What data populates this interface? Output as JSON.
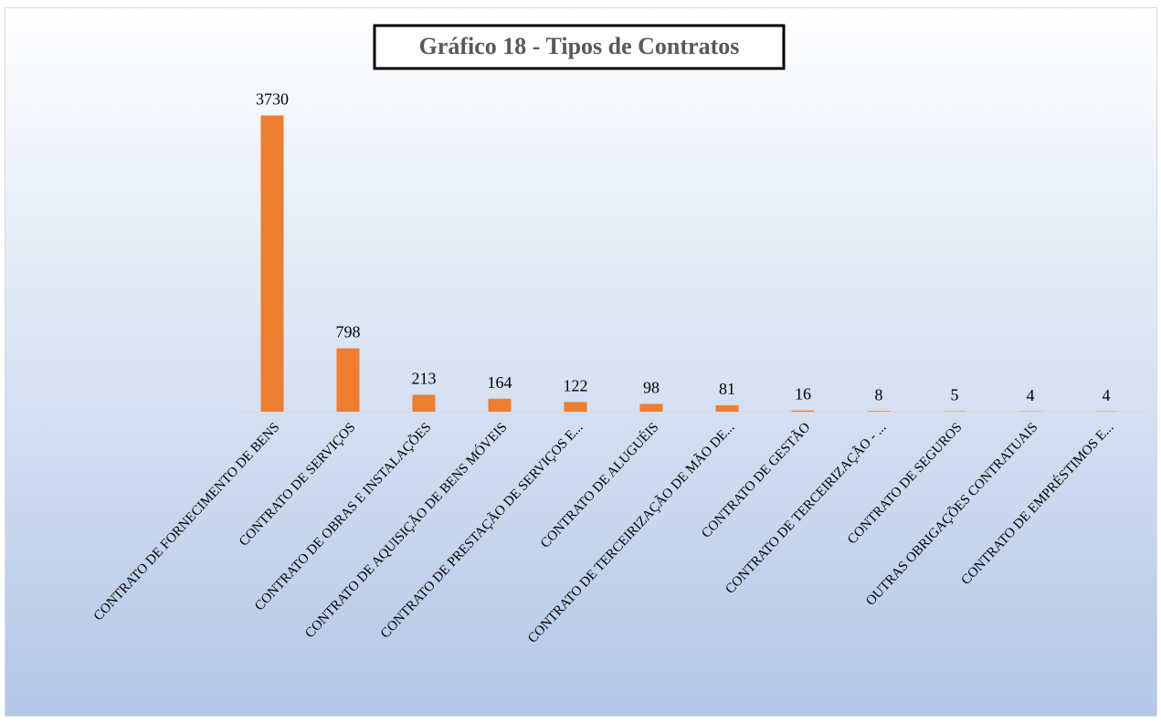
{
  "chart_data": {
    "type": "bar",
    "title": "Gráfico 18 - Tipos de Contratos",
    "categories": [
      "CONTRATO DE FORNECIMENTO DE BENS",
      "CONTRATO DE SERVIÇOS",
      "CONTRATO DE OBRAS E INSTALAÇÕES",
      "CONTRATO DE AQUISIÇÃO DE BENS MÓVEIS",
      "CONTRATO DE PRESTAÇÃO DE SERVIÇOS E...",
      "CONTRATO DE ALUGUÉIS",
      "CONTRATO DE TERCEIRIZAÇÃO DE MÃO DE...",
      "CONTRATO DE GESTÃO",
      "CONTRATO DE TERCEIRIZAÇÃO - ...",
      "CONTRATO DE SEGUROS",
      "OUTRAS OBRIGAÇÕES CONTRATUAIS",
      "CONTRATO DE EMPRÉSTIMOS E..."
    ],
    "values": [
      3730,
      798,
      213,
      164,
      122,
      98,
      81,
      16,
      8,
      5,
      4,
      4
    ],
    "color": "#ed7d31",
    "ylim": [
      0,
      4000
    ]
  }
}
